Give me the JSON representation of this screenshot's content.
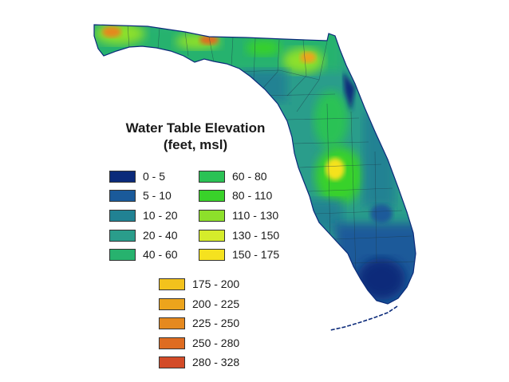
{
  "legend": {
    "title_line1": "Water Table Elevation",
    "title_line2": "(feet, msl)",
    "items": [
      {
        "label": "0 - 5",
        "color": "#0b2a7a"
      },
      {
        "label": "5 - 10",
        "color": "#1a5a9a"
      },
      {
        "label": "10 - 20",
        "color": "#218293"
      },
      {
        "label": "20 - 40",
        "color": "#2a9d8b"
      },
      {
        "label": "40 - 60",
        "color": "#27b26e"
      },
      {
        "label": "60 - 80",
        "color": "#2bc255"
      },
      {
        "label": "80 - 110",
        "color": "#39d22a"
      },
      {
        "label": "110 - 130",
        "color": "#8de02b"
      },
      {
        "label": "130 - 150",
        "color": "#d5ec2b"
      },
      {
        "label": "150 - 175",
        "color": "#f5e21f"
      },
      {
        "label": "175 - 200",
        "color": "#f3c21c"
      },
      {
        "label": "200 - 225",
        "color": "#eca41c"
      },
      {
        "label": "225 - 250",
        "color": "#e5891f"
      },
      {
        "label": "250 - 280",
        "color": "#de6c21"
      },
      {
        "label": "280 - 328",
        "color": "#d34b28"
      }
    ]
  }
}
